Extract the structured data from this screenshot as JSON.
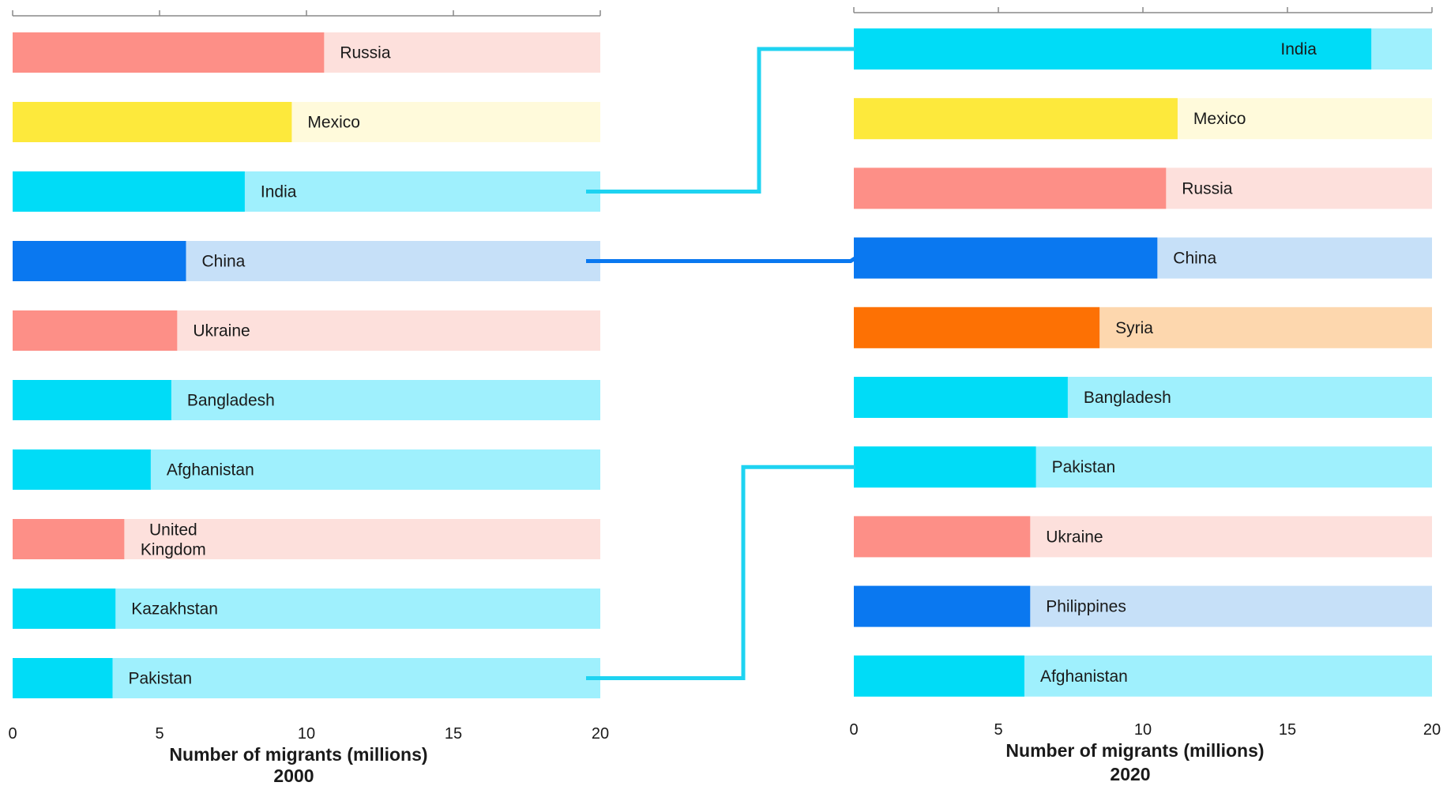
{
  "chart_data": [
    {
      "type": "bar",
      "orientation": "horizontal",
      "year_label": "2000",
      "xlabel": "Number of migrants (millions)",
      "xlim": [
        0,
        20
      ],
      "xticks": [
        "0",
        "5",
        "10",
        "15",
        "20"
      ],
      "categories": [
        "Russia",
        "Mexico",
        "India",
        "China",
        "Ukraine",
        "Bangladesh",
        "Afghanistan",
        "United Kingdom",
        "Kazakhstan",
        "Pakistan"
      ],
      "category_lines": [
        [
          "Russia"
        ],
        [
          "Mexico"
        ],
        [
          "India"
        ],
        [
          "China"
        ],
        [
          "Ukraine"
        ],
        [
          "Bangladesh"
        ],
        [
          "Afghanistan"
        ],
        [
          "United",
          "Kingdom"
        ],
        [
          "Kazakhstan"
        ],
        [
          "Pakistan"
        ]
      ],
      "values": [
        10.6,
        9.5,
        7.9,
        5.9,
        5.6,
        5.4,
        4.7,
        3.8,
        3.5,
        3.4
      ],
      "region_group": [
        "europe",
        "americas",
        "asia",
        "east-asia",
        "europe",
        "asia",
        "asia",
        "europe",
        "asia",
        "asia"
      ]
    },
    {
      "type": "bar",
      "orientation": "horizontal",
      "year_label": "2020",
      "xlabel": "Number of migrants (millions)",
      "xlim": [
        0,
        20
      ],
      "xticks": [
        "0",
        "5",
        "10",
        "15",
        "20"
      ],
      "categories": [
        "India",
        "Mexico",
        "Russia",
        "China",
        "Syria",
        "Bangladesh",
        "Pakistan",
        "Ukraine",
        "Philippines",
        "Afghanistan"
      ],
      "category_lines": [
        [
          "India"
        ],
        [
          "Mexico"
        ],
        [
          "Russia"
        ],
        [
          "China"
        ],
        [
          "Syria"
        ],
        [
          "Bangladesh"
        ],
        [
          "Pakistan"
        ],
        [
          "Ukraine"
        ],
        [
          "Philippines"
        ],
        [
          "Afghanistan"
        ]
      ],
      "values": [
        17.9,
        11.2,
        10.8,
        10.5,
        8.5,
        7.4,
        6.3,
        6.1,
        6.1,
        5.9
      ],
      "region_group": [
        "asia",
        "americas",
        "europe",
        "east-asia",
        "middle-east",
        "asia",
        "asia",
        "europe",
        "east-asia",
        "asia"
      ]
    }
  ],
  "colors": {
    "europe": {
      "bar": "#fd8f87",
      "track": "#fde0dc"
    },
    "americas": {
      "bar": "#fde93c",
      "track": "#fffadb"
    },
    "asia": {
      "bar": "#00dcf7",
      "track": "#9ff0fd"
    },
    "east-asia": {
      "bar": "#0a78f0",
      "track": "#c6e0f8"
    },
    "middle-east": {
      "bar": "#fd7104",
      "track": "#fdd7ae"
    },
    "axis": "#888888"
  },
  "connectors": [
    {
      "from": "India",
      "to": "India",
      "color": "#1ed3f1"
    },
    {
      "from": "China",
      "to": "China",
      "color": "#0a78f0"
    },
    {
      "from": "Pakistan",
      "to": "Pakistan",
      "color": "#1ed3f1"
    }
  ]
}
